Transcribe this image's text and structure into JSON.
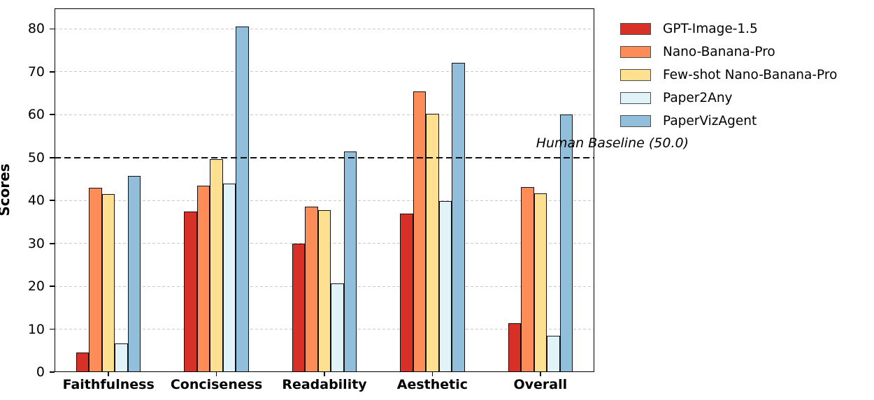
{
  "chart_data": {
    "type": "bar",
    "title": "",
    "xlabel": "",
    "ylabel": "Scores",
    "categories": [
      "Faithfulness",
      "Conciseness",
      "Readability",
      "Aesthetic",
      "Overall"
    ],
    "series": [
      {
        "name": "GPT-Image-1.5",
        "color": "#d73027",
        "values": [
          4.6,
          37.5,
          30.0,
          36.9,
          11.4
        ]
      },
      {
        "name": "Nano-Banana-Pro",
        "color": "#fc8d59",
        "values": [
          43.0,
          43.5,
          38.5,
          65.5,
          43.1
        ]
      },
      {
        "name": "Few-shot Nano-Banana-Pro",
        "color": "#fee090",
        "values": [
          41.5,
          49.6,
          37.7,
          60.3,
          41.7
        ]
      },
      {
        "name": "Paper2Any",
        "color": "#e0f3f8",
        "values": [
          6.6,
          44.0,
          20.6,
          39.9,
          8.5
        ]
      },
      {
        "name": "PaperVizAgent",
        "color": "#91bfdb",
        "values": [
          45.8,
          80.6,
          51.4,
          72.1,
          60.1
        ]
      }
    ],
    "baseline": {
      "value": 50.0,
      "label": "Human Baseline (50.0)"
    },
    "yticks": [
      0,
      10,
      20,
      30,
      40,
      50,
      60,
      70,
      80
    ],
    "ylim": [
      0,
      84.8
    ],
    "grid": "horizontal-dashed-light-gray",
    "legend_position": "outside-upper-right",
    "bar_edge_color": "#111111"
  }
}
